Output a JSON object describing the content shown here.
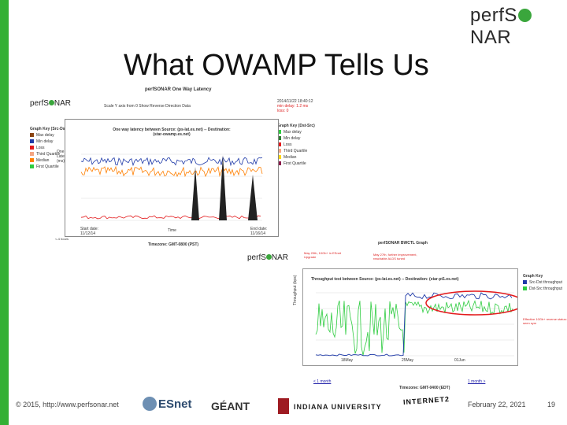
{
  "brand": {
    "prefix": "perfS",
    "suffix": "NAR"
  },
  "title": "What OWAMP Tells Us",
  "latency_panel": {
    "heading": "perfSONAR One Way Latency",
    "logo_prefix": "perfS",
    "logo_suffix": "NAR",
    "options": "Scale Y axis from 0  Show Reverse Direction Data",
    "stats": [
      "2014/11/22 18:40:12",
      "min delay: 1.2 ms",
      "loss: 0"
    ],
    "key_left": {
      "heading": "Graph Key (Src-Dst)",
      "items": [
        {
          "label": "Max delay",
          "color": "#8b4513"
        },
        {
          "label": "Min delay",
          "color": "#1f3aa8"
        },
        {
          "label": "Loss",
          "color": "#e31a1c"
        },
        {
          "label": "Third Quartile",
          "color": "#f4a582"
        },
        {
          "label": "Median",
          "color": "#ff7f00"
        },
        {
          "label": "First Quartile",
          "color": "#2ecc40"
        }
      ]
    },
    "key_right": {
      "heading": "Graph Key (Dst-Src)",
      "items": [
        {
          "label": "Max delay",
          "color": "#2ecc40"
        },
        {
          "label": "Min delay",
          "color": "#2e7d32"
        },
        {
          "label": "Loss",
          "color": "#e31a1c"
        },
        {
          "label": "Third Quartile",
          "color": "#f4a582"
        },
        {
          "label": "Median",
          "color": "#ffd700"
        },
        {
          "label": "First Quartile",
          "color": "#8b1a4a"
        }
      ]
    },
    "graph_title": "One way latency between Source: (ps-lat.es.net) -- Destination: (star-owamp.es.net)",
    "y_label": "One Way Latency (ms)",
    "x_label": "Time",
    "start": [
      "Start date:",
      "11/12/14"
    ],
    "end": [
      "End date:",
      "11/16/14"
    ],
    "prev": "<-4 hours",
    "timezone": "Timezone: GMT-0800 (PST)"
  },
  "throughput_panel": {
    "heading": "perfSONAR BWCTL Graph",
    "logo_prefix": "perfS",
    "logo_suffix": "NAR",
    "graph_title": "Throughput test between Source: (ps-lat.es.net) -- Destination: (star-pt1.es.net)",
    "y_label": "Throughput (bps)",
    "annotations": [
      "May 20th, 10Gb+ in ESnet Upgrade",
      "May 27th, further improvement, reachable ALDS tuned",
      "Effective 10Gb+ reverse status: seen sym"
    ],
    "key_heading": "Graph Key",
    "key_items": [
      {
        "label": "Src-Dst throughput",
        "color": "#1f3aa8"
      },
      {
        "label": "Dst-Src throughput",
        "color": "#2ecc40"
      }
    ],
    "x_ticks": [
      "18May",
      "25May",
      "01Jun"
    ],
    "prev": "< 1 month",
    "next": "1 month >",
    "timezone": "Timezone: GMT-0400 (EDT)"
  },
  "footer": {
    "copyright": "© 2015, http://www.perfsonar.net",
    "esnet": "ESnet",
    "geant": "GÉANT",
    "iu": "INDIANA UNIVERSITY",
    "internet2": "INTERNET2",
    "date": "February 22, 2021",
    "page": "19"
  },
  "colors": {
    "green_bar": "#33b034",
    "accent_green": "#3aa63c",
    "annotation_red": "#d22222"
  }
}
